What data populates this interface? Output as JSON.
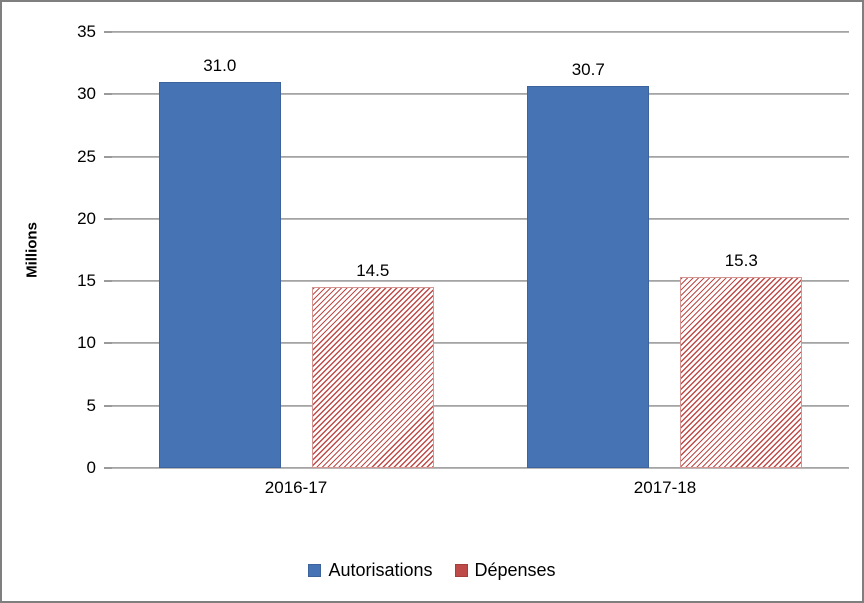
{
  "chart_data": {
    "type": "bar",
    "title": "",
    "categories": [
      "2016-17",
      "2017-18"
    ],
    "series": [
      {
        "name": "Autorisations",
        "values": [
          31.0,
          30.7
        ],
        "labels": [
          "31.0",
          "30.7"
        ],
        "color": "#4573B4",
        "border_color": "#3D639D",
        "fill": "solid"
      },
      {
        "name": "Dépenses",
        "values": [
          14.5,
          15.3
        ],
        "labels": [
          "14.5",
          "15.3"
        ],
        "color": "#BE4B48",
        "fill": "diagonal-hatch"
      }
    ],
    "xlabel": "",
    "ylabel": "Millions",
    "ylim": [
      0,
      35
    ],
    "y_ticks": [
      0,
      5,
      10,
      15,
      20,
      25,
      30,
      35
    ],
    "gridlines": "horizontal",
    "gridline_color": "#9A9A9A",
    "frame_border_color": "#7F7F7F",
    "legend_position": "bottom"
  }
}
